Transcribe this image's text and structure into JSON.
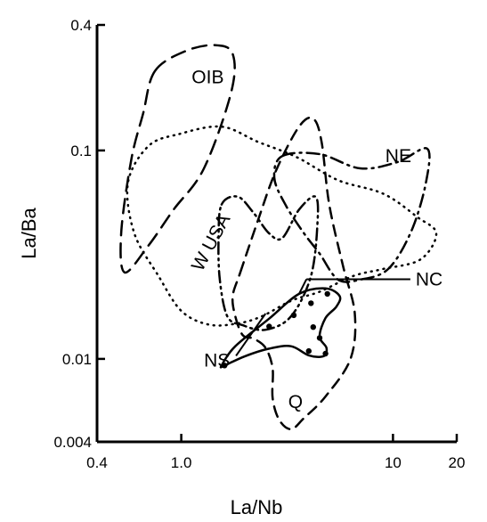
{
  "chart_data": {
    "type": "scatter",
    "x_scale": "log",
    "y_scale": "log",
    "xlabel": "La/Nb",
    "ylabel": "La/Ba",
    "xlim": [
      0.4,
      20
    ],
    "ylim": [
      0.004,
      0.4
    ],
    "x_ticks": [
      {
        "value": 0.4,
        "label": "0.4"
      },
      {
        "value": 1.0,
        "label": "1.0"
      },
      {
        "value": 10,
        "label": "10"
      },
      {
        "value": 20,
        "label": "20"
      }
    ],
    "y_ticks": [
      {
        "value": 0.4,
        "label": "0.4"
      },
      {
        "value": 0.1,
        "label": "0.1"
      },
      {
        "value": 0.01,
        "label": "0.01"
      },
      {
        "value": 0.004,
        "label": "0.004"
      }
    ],
    "grid": false,
    "legend": "none",
    "fields": [
      {
        "label": "OIB",
        "dash": "longdash",
        "outline": [
          [
            0.75,
            0.24
          ],
          [
            1.05,
            0.3
          ],
          [
            1.45,
            0.32
          ],
          [
            1.75,
            0.29
          ],
          [
            1.72,
            0.19
          ],
          [
            1.28,
            0.082
          ],
          [
            0.92,
            0.052
          ],
          [
            0.7,
            0.035
          ],
          [
            0.54,
            0.026
          ],
          [
            0.52,
            0.04
          ],
          [
            0.58,
            0.09
          ],
          [
            0.66,
            0.15
          ]
        ],
        "label_pos": [
          1.12,
          0.21
        ]
      },
      {
        "label": "W USA",
        "dash": "dotted",
        "outline": [
          [
            0.98,
            0.12
          ],
          [
            1.55,
            0.13
          ],
          [
            2.3,
            0.11
          ],
          [
            3.5,
            0.093
          ],
          [
            5.5,
            0.072
          ],
          [
            9.0,
            0.062
          ],
          [
            13,
            0.048
          ],
          [
            16,
            0.04
          ],
          [
            13.5,
            0.03
          ],
          [
            9,
            0.027
          ],
          [
            6.5,
            0.025
          ],
          [
            4.5,
            0.021
          ],
          [
            3.3,
            0.019
          ],
          [
            2.4,
            0.016
          ],
          [
            1.85,
            0.0148
          ],
          [
            1.35,
            0.0146
          ],
          [
            1.0,
            0.017
          ],
          [
            0.78,
            0.025
          ],
          [
            0.6,
            0.04
          ],
          [
            0.56,
            0.07
          ],
          [
            0.7,
            0.105
          ]
        ],
        "label_pos": [
          1.25,
          0.026
        ]
      },
      {
        "label": "NE",
        "dash": "dashdot",
        "outline": [
          [
            3.0,
            0.094
          ],
          [
            4.5,
            0.096
          ],
          [
            7.0,
            0.082
          ],
          [
            10.5,
            0.088
          ],
          [
            14.5,
            0.102
          ],
          [
            14.3,
            0.07
          ],
          [
            12.2,
            0.041
          ],
          [
            9.5,
            0.027
          ],
          [
            7.0,
            0.024
          ],
          [
            5.5,
            0.024
          ],
          [
            4.5,
            0.032
          ],
          [
            3.8,
            0.04
          ],
          [
            3.1,
            0.055
          ],
          [
            2.75,
            0.074
          ]
        ],
        "label_pos": [
          9.2,
          0.088
        ]
      },
      {
        "label": "Q",
        "dash": "dashed",
        "outline": [
          [
            1.9,
            0.026
          ],
          [
            2.3,
            0.046
          ],
          [
            2.8,
            0.08
          ],
          [
            3.6,
            0.13
          ],
          [
            4.2,
            0.142
          ],
          [
            4.6,
            0.11
          ],
          [
            5.0,
            0.055
          ],
          [
            5.8,
            0.028
          ],
          [
            6.6,
            0.0165
          ],
          [
            6.3,
            0.01
          ],
          [
            4.8,
            0.0066
          ],
          [
            3.8,
            0.0052
          ],
          [
            3.3,
            0.0046
          ],
          [
            2.9,
            0.0051
          ],
          [
            2.7,
            0.0065
          ],
          [
            2.7,
            0.009
          ],
          [
            2.5,
            0.0113
          ],
          [
            2.2,
            0.0125
          ],
          [
            1.95,
            0.013
          ],
          [
            1.8,
            0.016
          ],
          [
            1.75,
            0.02
          ]
        ],
        "label_pos": [
          3.2,
          0.0058
        ]
      },
      {
        "label": "NS",
        "dash": "dashdotdot",
        "outline": [
          [
            1.55,
            0.055
          ],
          [
            1.85,
            0.06
          ],
          [
            2.2,
            0.05
          ],
          [
            2.6,
            0.04
          ],
          [
            3.0,
            0.038
          ],
          [
            3.6,
            0.052
          ],
          [
            4.3,
            0.06
          ],
          [
            4.4,
            0.045
          ],
          [
            4.1,
            0.025
          ],
          [
            3.3,
            0.016
          ],
          [
            2.5,
            0.0138
          ],
          [
            1.95,
            0.0145
          ],
          [
            1.65,
            0.016
          ],
          [
            1.52,
            0.024
          ],
          [
            1.5,
            0.038
          ]
        ],
        "label_pos": [
          1.28,
          0.0092
        ]
      },
      {
        "label": "NC",
        "dash": "solid",
        "outline": [
          [
            1.55,
            0.0093
          ],
          [
            1.8,
            0.0115
          ],
          [
            2.6,
            0.0156
          ],
          [
            3.6,
            0.0205
          ],
          [
            4.8,
            0.0218
          ],
          [
            5.6,
            0.02
          ],
          [
            5.4,
            0.0178
          ],
          [
            4.8,
            0.0157
          ],
          [
            4.5,
            0.0128
          ],
          [
            4.85,
            0.0113
          ],
          [
            4.7,
            0.0103
          ],
          [
            4.0,
            0.0104
          ],
          [
            3.3,
            0.0115
          ],
          [
            2.6,
            0.0112
          ],
          [
            2.0,
            0.0103
          ],
          [
            1.6,
            0.0093
          ]
        ],
        "label_pos": [
          12.8,
          0.0225
        ]
      }
    ],
    "points": [
      {
        "x": 1.6,
        "y": 0.0093
      },
      {
        "x": 2.6,
        "y": 0.0143
      },
      {
        "x": 3.4,
        "y": 0.0162
      },
      {
        "x": 4.2,
        "y": 0.0142
      },
      {
        "x": 4.5,
        "y": 0.0126
      },
      {
        "x": 4.1,
        "y": 0.0185
      },
      {
        "x": 4.9,
        "y": 0.0205
      },
      {
        "x": 4.0,
        "y": 0.0109
      },
      {
        "x": 4.8,
        "y": 0.0106
      }
    ]
  }
}
